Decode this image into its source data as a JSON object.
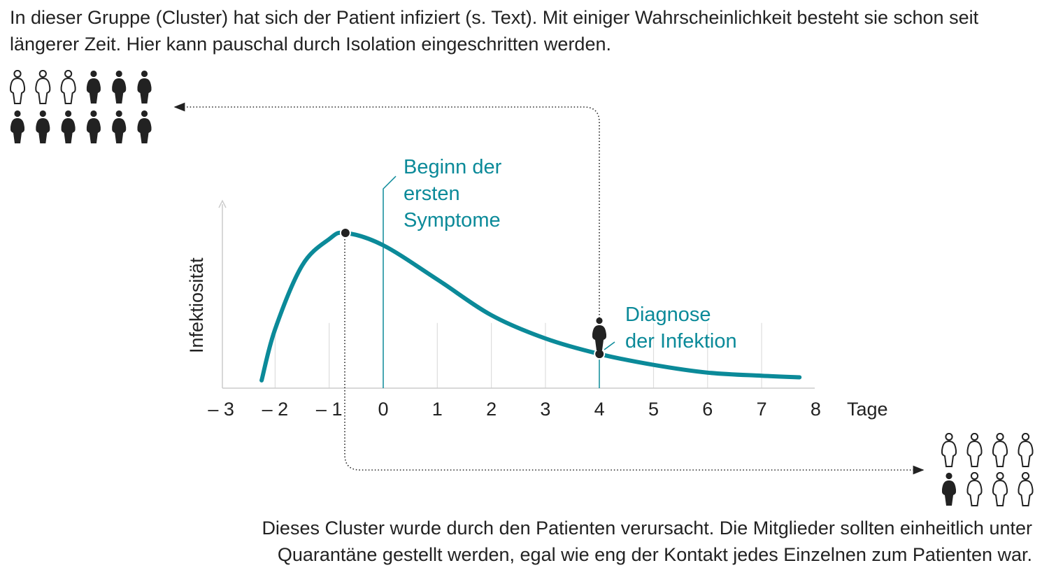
{
  "texts": {
    "top": "In dieser Gruppe (Cluster)  hat sich der Patient infiziert (s. Text). Mit einiger Wahrscheinlichkeit besteht sie schon seit längerer Zeit. Hier kann pauschal durch Isolation eingeschritten werden.",
    "bottom_line1": "Dieses Cluster wurde durch den Patienten verursacht. Die Mitglieder sollten einheitlich unter",
    "bottom_line2": "Quarantäne gestellt werden, egal wie eng der Kontakt jedes Einzelnen zum Patienten war."
  },
  "annotations": {
    "symptoms": [
      "Beginn der",
      "ersten",
      "Symptome"
    ],
    "diagnosis": [
      "Diagnose",
      "der Infektion"
    ]
  },
  "groups": {
    "source_cluster": [
      [
        "outline",
        "outline",
        "outline",
        "filled",
        "filled",
        "filled"
      ],
      [
        "filled",
        "filled",
        "filled",
        "filled",
        "filled",
        "filled"
      ]
    ],
    "caused_cluster": [
      [
        "outline",
        "outline",
        "outline",
        "outline"
      ],
      [
        "filled",
        "outline",
        "outline",
        "outline"
      ]
    ]
  },
  "colors": {
    "teal": "#0b8a99",
    "ink": "#222222",
    "grid": "#dddddd"
  },
  "chart_data": {
    "type": "line",
    "ylabel": "Infektiosität",
    "xlabel": "Tage",
    "xlim": [
      -3,
      8
    ],
    "ylim": [
      0,
      1.25
    ],
    "x_ticks": [
      "– 3",
      "– 2",
      "– 1",
      "0",
      "1",
      "2",
      "3",
      "4",
      "5",
      "6",
      "7",
      "8"
    ],
    "x_tick_values": [
      -3,
      -2,
      -1,
      0,
      1,
      2,
      3,
      4,
      5,
      6,
      7,
      8
    ],
    "grid": "vertical",
    "series": [
      {
        "name": "Infektiosität",
        "x": [
          -2.25,
          -2,
          -1.5,
          -1,
          -0.7,
          0,
          1,
          2,
          3,
          4,
          5,
          6,
          7,
          7.7
        ],
        "y": [
          0.05,
          0.38,
          0.79,
          0.96,
          1.0,
          0.92,
          0.7,
          0.47,
          0.32,
          0.22,
          0.15,
          0.1,
          0.08,
          0.07
        ]
      }
    ],
    "markers": {
      "peak_x": -0.7,
      "symptom_onset_x": 0,
      "diagnosis_x": 4
    }
  }
}
